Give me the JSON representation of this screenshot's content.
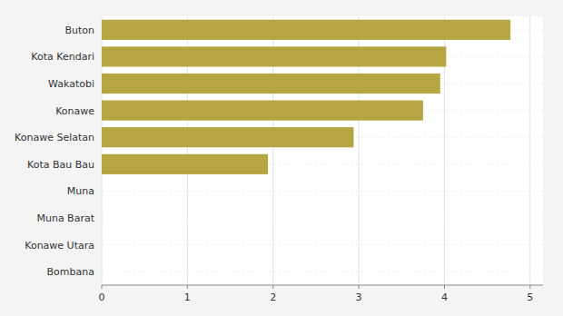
{
  "chart_data": {
    "type": "bar",
    "orientation": "horizontal",
    "categories": [
      "Bombana",
      "Konawe Utara",
      "Muna Barat",
      "Muna",
      "Kota Bau Bau",
      "Konawe Selatan",
      "Konawe",
      "Wakatobi",
      "Kota Kendari",
      "Buton"
    ],
    "values": [
      0,
      0,
      0,
      0,
      1.94,
      2.94,
      3.75,
      3.95,
      4.02,
      4.77
    ],
    "color": "#b5a642",
    "xlim": [
      0,
      5.15
    ],
    "xticks": [
      0,
      1,
      2,
      3,
      4,
      5
    ],
    "grid": true
  }
}
